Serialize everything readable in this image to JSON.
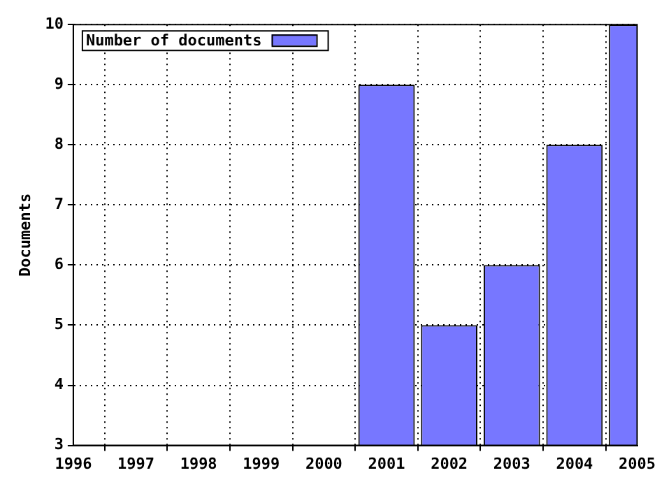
{
  "chart_data": {
    "type": "bar",
    "ylabel": "Documents",
    "x": [
      2001,
      2002,
      2003,
      2004,
      2005
    ],
    "series": [
      {
        "name": "Number of documents",
        "color": "#7777ff",
        "values": [
          9,
          5,
          6,
          8,
          10
        ]
      }
    ],
    "xlim": [
      1996,
      2005
    ],
    "xticks": [
      1996,
      1997,
      1998,
      1999,
      2000,
      2001,
      2002,
      2003,
      2004,
      2005
    ],
    "ylim": [
      3,
      10
    ],
    "yticks": [
      3,
      4,
      5,
      6,
      7,
      8,
      9,
      10
    ],
    "grid": true,
    "legend": "top left"
  }
}
